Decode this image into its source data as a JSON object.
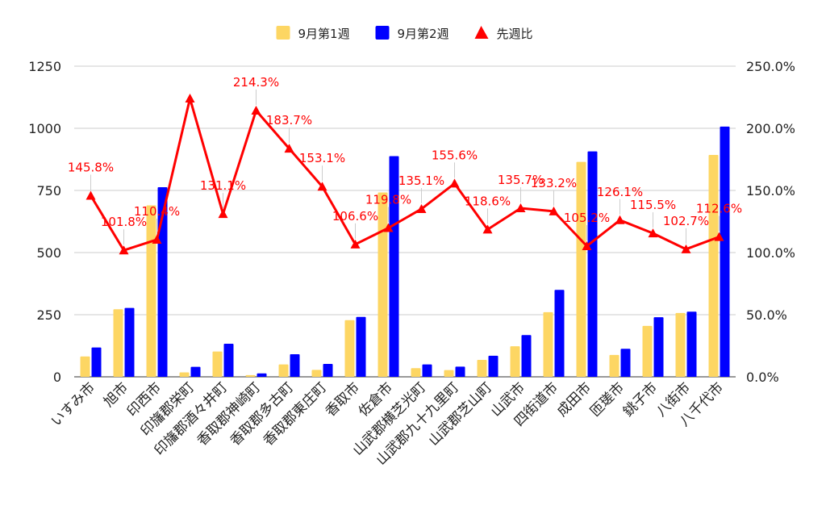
{
  "chart_data": {
    "type": "bar+line",
    "categories": [
      "いすみ市",
      "旭市",
      "印西市",
      "印旛郡栄町",
      "印旛郡酒々井町",
      "香取郡神崎町",
      "香取郡多古町",
      "香取郡東庄町",
      "香取市",
      "佐倉市",
      "山武郡横芝光町",
      "山武郡九十九里町",
      "山武郡芝山町",
      "山武市",
      "四街道市",
      "成田市",
      "匝瑳市",
      "銚子市",
      "八街市",
      "八千代市"
    ],
    "series": [
      {
        "name": "9月第1週",
        "type": "bar",
        "axis": "left",
        "color": "#FDD663",
        "values": [
          82,
          272,
          690,
          18,
          102,
          7,
          50,
          28,
          228,
          742,
          35,
          27,
          68,
          123,
          260,
          865,
          88,
          205,
          257,
          893
        ]
      },
      {
        "name": "9月第2週",
        "type": "bar",
        "axis": "left",
        "color": "#0000FF",
        "values": [
          118,
          277,
          763,
          40,
          133,
          14,
          91,
          52,
          241,
          888,
          50,
          41,
          85,
          168,
          350,
          907,
          113,
          240,
          262,
          1007
        ]
      },
      {
        "name": "先週比",
        "type": "line",
        "axis": "right",
        "color": "#FF0000",
        "values": [
          145.8,
          101.8,
          110.4,
          224.0,
          131.1,
          214.3,
          183.7,
          153.1,
          106.6,
          119.8,
          135.1,
          155.6,
          118.6,
          135.7,
          133.2,
          105.2,
          126.1,
          115.5,
          102.7,
          112.6
        ],
        "labels": [
          "145.8%",
          "101.8%",
          "110.4%",
          "",
          "131.1%",
          "214.3%",
          "183.7%",
          "153.1%",
          "106.6%",
          "119.8%",
          "135.1%",
          "155.6%",
          "118.6%",
          "135.7%",
          "133.2%",
          "105.2%",
          "126.1%",
          "115.5%",
          "102.7%",
          "112.6%"
        ]
      }
    ],
    "y_left": {
      "min": 0,
      "max": 1250,
      "ticks": [
        0,
        250,
        500,
        750,
        1000,
        1250
      ],
      "tick_labels": [
        "0",
        "250",
        "500",
        "750",
        "1000",
        "1250"
      ]
    },
    "y_right": {
      "min": 0,
      "max": 250,
      "ticks": [
        0,
        50,
        100,
        150,
        200,
        250
      ],
      "tick_labels": [
        "0.0%",
        "50.0%",
        "100.0%",
        "150.0%",
        "200.0%",
        "250.0%"
      ]
    },
    "grid": true,
    "legend": "top-center"
  }
}
